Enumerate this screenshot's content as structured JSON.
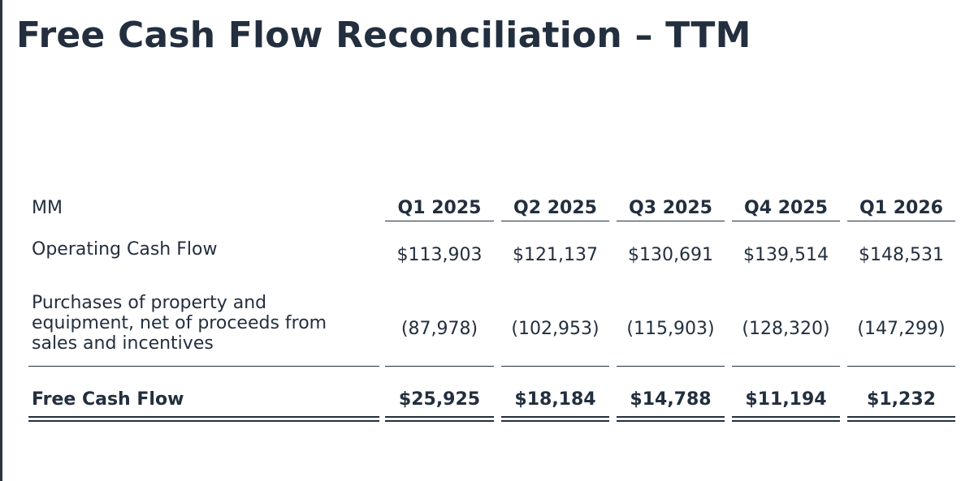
{
  "title": "Free Cash Flow Reconciliation – TTM",
  "table": {
    "unit_label": "MM",
    "columns": [
      "Q1 2025",
      "Q2 2025",
      "Q3 2025",
      "Q4 2025",
      "Q1 2026"
    ],
    "rows": [
      {
        "label": "Operating Cash Flow",
        "values": [
          "$113,903",
          "$121,137",
          "$130,691",
          "$139,514",
          "$148,531"
        ]
      },
      {
        "label": "Purchases of property and equipment, net of proceeds from sales and incentives",
        "values": [
          "(87,978)",
          "(102,953)",
          "(115,903)",
          "(128,320)",
          "(147,299)"
        ]
      },
      {
        "label": "Free Cash Flow",
        "values": [
          "$25,925",
          "$18,184",
          "$14,788",
          "$11,194",
          "$1,232"
        ]
      }
    ]
  }
}
